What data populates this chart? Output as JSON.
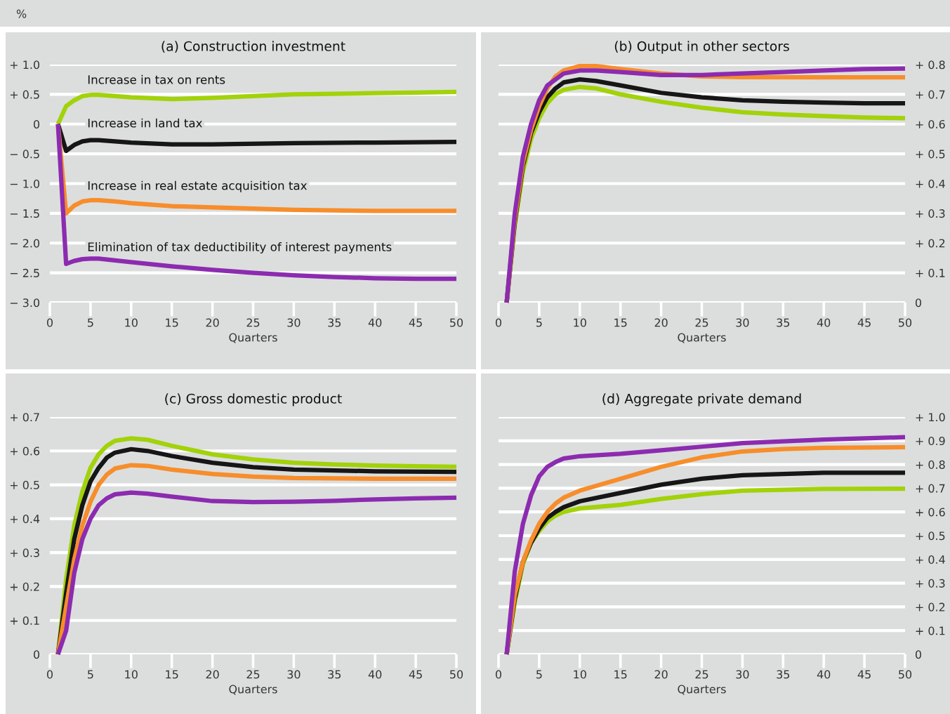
{
  "chart_data": [
    {
      "type": "line",
      "title": "(a) Construction investment",
      "xlabel": "Quarters",
      "annotations": [
        "%"
      ],
      "marker": "none",
      "line_style": "solid",
      "grid": "y",
      "legend": false,
      "xlim": [
        0,
        50
      ],
      "xticks": [
        0,
        5,
        10,
        15,
        20,
        25,
        30,
        35,
        40,
        45,
        50
      ],
      "ylim": [
        -3.0,
        1.0
      ],
      "yticks": [
        {
          "value": 1.0,
          "label": "+ 1.0"
        },
        {
          "value": 0.5,
          "label": "+ 0.5"
        },
        0,
        {
          "value": -0.5,
          "label": "− 0.5"
        },
        {
          "value": -1.0,
          "label": "− 1.0"
        },
        {
          "value": -1.5,
          "label": "− 1.5"
        },
        {
          "value": -2.0,
          "label": "− 2.0"
        },
        {
          "value": -2.5,
          "label": "− 2.5"
        },
        {
          "value": -3.0,
          "label": "− 3.0"
        }
      ],
      "series": [
        {
          "name": "Increase in tax on rents",
          "color": "#a2d20a",
          "x": [
            1,
            2,
            3,
            4,
            5,
            6,
            8,
            10,
            15,
            20,
            25,
            30,
            35,
            40,
            45,
            50
          ],
          "values": [
            0,
            0.3,
            0.4,
            0.47,
            0.49,
            0.49,
            0.47,
            0.45,
            0.42,
            0.44,
            0.47,
            0.5,
            0.51,
            0.52,
            0.53,
            0.54
          ]
        },
        {
          "name": "Increase in land tax",
          "color": "#161616",
          "x": [
            1,
            2,
            3,
            4,
            5,
            6,
            8,
            10,
            15,
            20,
            30,
            40,
            50
          ],
          "values": [
            0,
            -0.45,
            -0.35,
            -0.29,
            -0.27,
            -0.27,
            -0.29,
            -0.31,
            -0.34,
            -0.34,
            -0.32,
            -0.31,
            -0.3
          ]
        },
        {
          "name": "Increase in real estate acquisition tax",
          "color": "#f78d2b",
          "x": [
            1,
            2,
            3,
            4,
            5,
            6,
            8,
            10,
            15,
            20,
            25,
            30,
            40,
            50
          ],
          "values": [
            0,
            -1.5,
            -1.37,
            -1.3,
            -1.28,
            -1.28,
            -1.3,
            -1.33,
            -1.38,
            -1.4,
            -1.42,
            -1.44,
            -1.46,
            -1.46
          ]
        },
        {
          "name": "Elimination of tax deductibility of interest payments",
          "color": "#8c2bb0",
          "x": [
            1,
            2,
            3,
            4,
            5,
            6,
            8,
            10,
            15,
            20,
            25,
            30,
            35,
            40,
            45,
            50
          ],
          "values": [
            0,
            -2.35,
            -2.3,
            -2.27,
            -2.26,
            -2.26,
            -2.29,
            -2.32,
            -2.39,
            -2.45,
            -2.5,
            -2.54,
            -2.57,
            -2.59,
            -2.6,
            -2.6
          ]
        }
      ]
    },
    {
      "type": "line",
      "title": "(b) Output in other sectors",
      "xlabel": "Quarters",
      "marker": "none",
      "line_style": "solid",
      "grid": "y",
      "legend": false,
      "xlim": [
        0,
        50
      ],
      "xticks": [
        0,
        5,
        10,
        15,
        20,
        25,
        30,
        35,
        40,
        45,
        50
      ],
      "y2lim": [
        0,
        0.8
      ],
      "y2ticks": [
        0,
        {
          "value": 0.1,
          "label": "+ 0.1"
        },
        {
          "value": 0.2,
          "label": "+ 0.2"
        },
        {
          "value": 0.3,
          "label": "+ 0.3"
        },
        {
          "value": 0.4,
          "label": "+ 0.4"
        },
        {
          "value": 0.5,
          "label": "+ 0.5"
        },
        {
          "value": 0.6,
          "label": "+ 0.6"
        },
        {
          "value": 0.7,
          "label": "+ 0.7"
        },
        {
          "value": 0.8,
          "label": "+ 0.8"
        }
      ],
      "series": [
        {
          "color": "#a2d20a",
          "axis": "y2",
          "x": [
            1,
            2,
            3,
            4,
            5,
            6,
            7,
            8,
            10,
            12,
            15,
            20,
            25,
            30,
            35,
            40,
            45,
            50
          ],
          "values": [
            0,
            0.26,
            0.44,
            0.55,
            0.62,
            0.67,
            0.7,
            0.715,
            0.725,
            0.72,
            0.7,
            0.675,
            0.655,
            0.64,
            0.632,
            0.627,
            0.622,
            0.62
          ]
        },
        {
          "color": "#161616",
          "axis": "y2",
          "x": [
            1,
            2,
            3,
            4,
            5,
            6,
            7,
            8,
            10,
            12,
            15,
            20,
            25,
            30,
            35,
            40,
            45,
            50
          ],
          "values": [
            0,
            0.27,
            0.46,
            0.57,
            0.64,
            0.69,
            0.72,
            0.74,
            0.75,
            0.745,
            0.73,
            0.705,
            0.69,
            0.68,
            0.675,
            0.672,
            0.67,
            0.67
          ]
        },
        {
          "color": "#f78d2b",
          "axis": "y2",
          "x": [
            1,
            2,
            3,
            4,
            5,
            6,
            7,
            8,
            10,
            12,
            15,
            20,
            25,
            30,
            40,
            50
          ],
          "values": [
            0,
            0.28,
            0.47,
            0.58,
            0.66,
            0.72,
            0.76,
            0.78,
            0.795,
            0.795,
            0.785,
            0.77,
            0.76,
            0.758,
            0.757,
            0.757
          ]
        },
        {
          "color": "#8c2bb0",
          "axis": "y2",
          "x": [
            1,
            2,
            3,
            4,
            5,
            6,
            7,
            8,
            10,
            12,
            15,
            20,
            25,
            30,
            35,
            40,
            45,
            50
          ],
          "values": [
            0,
            0.3,
            0.49,
            0.6,
            0.68,
            0.73,
            0.75,
            0.77,
            0.78,
            0.78,
            0.775,
            0.765,
            0.765,
            0.77,
            0.775,
            0.78,
            0.785,
            0.787
          ]
        }
      ]
    },
    {
      "type": "line",
      "title": "(c) Gross domestic product",
      "xlabel": "Quarters",
      "marker": "none",
      "line_style": "solid",
      "grid": "y",
      "legend": false,
      "xlim": [
        0,
        50
      ],
      "xticks": [
        0,
        5,
        10,
        15,
        20,
        25,
        30,
        35,
        40,
        45,
        50
      ],
      "ylim": [
        0,
        0.7
      ],
      "yticks": [
        0,
        {
          "value": 0.1,
          "label": "+ 0.1"
        },
        {
          "value": 0.2,
          "label": "+ 0.2"
        },
        {
          "value": 0.3,
          "label": "+ 0.3"
        },
        {
          "value": 0.4,
          "label": "+ 0.4"
        },
        {
          "value": 0.5,
          "label": "+ 0.5"
        },
        {
          "value": 0.6,
          "label": "+ 0.6"
        },
        {
          "value": 0.7,
          "label": "+ 0.7"
        }
      ],
      "series": [
        {
          "color": "#a2d20a",
          "x": [
            1,
            2,
            3,
            4,
            5,
            6,
            7,
            8,
            10,
            12,
            15,
            20,
            25,
            30,
            35,
            40,
            45,
            50
          ],
          "values": [
            0,
            0.22,
            0.38,
            0.48,
            0.55,
            0.59,
            0.615,
            0.63,
            0.637,
            0.633,
            0.615,
            0.59,
            0.575,
            0.565,
            0.56,
            0.557,
            0.555,
            0.553
          ]
        },
        {
          "color": "#161616",
          "x": [
            1,
            2,
            3,
            4,
            5,
            6,
            7,
            8,
            10,
            12,
            15,
            20,
            25,
            30,
            40,
            50
          ],
          "values": [
            0,
            0.18,
            0.34,
            0.44,
            0.51,
            0.55,
            0.58,
            0.595,
            0.605,
            0.6,
            0.585,
            0.565,
            0.552,
            0.545,
            0.54,
            0.538
          ]
        },
        {
          "color": "#f78d2b",
          "x": [
            1,
            2,
            3,
            4,
            5,
            6,
            7,
            8,
            10,
            12,
            15,
            20,
            25,
            30,
            40,
            50
          ],
          "values": [
            0,
            0.14,
            0.28,
            0.38,
            0.45,
            0.5,
            0.53,
            0.548,
            0.558,
            0.556,
            0.545,
            0.532,
            0.524,
            0.52,
            0.518,
            0.518
          ]
        },
        {
          "color": "#8c2bb0",
          "x": [
            1,
            2,
            3,
            4,
            5,
            6,
            7,
            8,
            10,
            12,
            15,
            20,
            25,
            30,
            35,
            40,
            45,
            50
          ],
          "values": [
            0,
            0.07,
            0.24,
            0.34,
            0.4,
            0.44,
            0.46,
            0.472,
            0.477,
            0.474,
            0.465,
            0.452,
            0.449,
            0.45,
            0.453,
            0.457,
            0.46,
            0.462
          ]
        }
      ]
    },
    {
      "type": "line",
      "title": "(d) Aggregate private demand",
      "xlabel": "Quarters",
      "marker": "none",
      "line_style": "solid",
      "grid": "y",
      "legend": false,
      "xlim": [
        0,
        50
      ],
      "xticks": [
        0,
        5,
        10,
        15,
        20,
        25,
        30,
        35,
        40,
        45,
        50
      ],
      "y2lim": [
        0,
        1.0
      ],
      "y2ticks": [
        0,
        {
          "value": 0.1,
          "label": "+ 0.1"
        },
        {
          "value": 0.2,
          "label": "+ 0.2"
        },
        {
          "value": 0.3,
          "label": "+ 0.3"
        },
        {
          "value": 0.4,
          "label": "+ 0.4"
        },
        {
          "value": 0.5,
          "label": "+ 0.5"
        },
        {
          "value": 0.6,
          "label": "+ 0.6"
        },
        {
          "value": 0.7,
          "label": "+ 0.7"
        },
        {
          "value": 0.8,
          "label": "+ 0.8"
        },
        {
          "value": 0.9,
          "label": "+ 0.9"
        },
        {
          "value": 1.0,
          "label": "+ 1.0"
        }
      ],
      "series": [
        {
          "color": "#a2d20a",
          "axis": "y2",
          "x": [
            1,
            2,
            3,
            4,
            5,
            6,
            7,
            8,
            10,
            15,
            20,
            25,
            30,
            40,
            50
          ],
          "values": [
            0,
            0.22,
            0.38,
            0.47,
            0.52,
            0.56,
            0.585,
            0.6,
            0.615,
            0.63,
            0.655,
            0.675,
            0.69,
            0.697,
            0.698
          ]
        },
        {
          "color": "#161616",
          "axis": "y2",
          "x": [
            1,
            2,
            3,
            4,
            5,
            6,
            7,
            8,
            10,
            15,
            20,
            25,
            30,
            35,
            40,
            50
          ],
          "values": [
            0,
            0.235,
            0.39,
            0.47,
            0.53,
            0.575,
            0.6,
            0.62,
            0.645,
            0.68,
            0.715,
            0.74,
            0.755,
            0.76,
            0.765,
            0.765
          ]
        },
        {
          "color": "#f78d2b",
          "axis": "y2",
          "x": [
            1,
            2,
            3,
            4,
            5,
            6,
            7,
            8,
            10,
            15,
            20,
            25,
            30,
            35,
            40,
            50
          ],
          "values": [
            0,
            0.25,
            0.39,
            0.48,
            0.55,
            0.6,
            0.635,
            0.66,
            0.69,
            0.74,
            0.79,
            0.83,
            0.855,
            0.865,
            0.87,
            0.873
          ]
        },
        {
          "color": "#8c2bb0",
          "axis": "y2",
          "x": [
            1,
            2,
            3,
            4,
            5,
            6,
            7,
            8,
            10,
            15,
            20,
            25,
            30,
            40,
            50
          ],
          "values": [
            0,
            0.35,
            0.55,
            0.67,
            0.75,
            0.79,
            0.81,
            0.825,
            0.835,
            0.845,
            0.86,
            0.875,
            0.89,
            0.905,
            0.915
          ]
        }
      ]
    }
  ]
}
